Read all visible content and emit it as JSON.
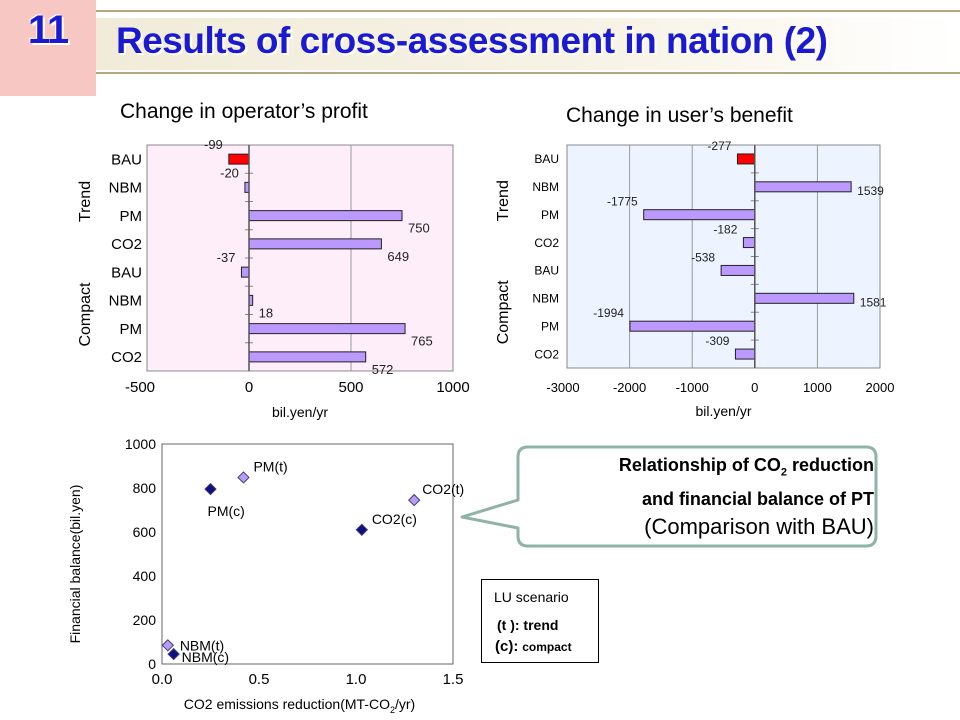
{
  "header": {
    "number": "11",
    "title": "Results of cross-assessment in nation (2)"
  },
  "colors": {
    "title_blue": "#1a1ad0",
    "bar_red": "#ff0000",
    "bar_purple": "#bb99ff",
    "panel_pink": "#fdeefa",
    "panel_blue": "#eef4ff",
    "marker_dark": "#10107a",
    "marker_light": "#b79ef0",
    "callout_border": "#8fb3a6"
  },
  "callout": {
    "line1_pre": "Relationship of CO",
    "line1_sub": "2",
    "line1_post": " reduction",
    "line2": "and financial balance of PT",
    "line3": "(Comparison with BAU)"
  },
  "legend": {
    "title": "LU scenario",
    "trend": "(t ): trend",
    "compact_paren": "(c):",
    "compact_word": "compact"
  },
  "chart_data": [
    {
      "type": "bar",
      "orientation": "horizontal",
      "title": "Change in operator’s profit",
      "xlabel": "bil.yen/yr",
      "xlim": [
        -500,
        1000
      ],
      "xticks": [
        "-500",
        "0",
        "500",
        "1000"
      ],
      "groups": [
        "Trend",
        "Compact"
      ],
      "categories": [
        "BAU",
        "NBM",
        "PM",
        "CO2",
        "BAU",
        "NBM",
        "PM",
        "CO2"
      ],
      "values": [
        -99,
        -20,
        750,
        649,
        -37,
        18,
        765,
        572
      ],
      "labels": [
        "-99",
        "-20",
        "750",
        "649",
        "-37",
        "18",
        "765",
        "572"
      ],
      "highlight_index": 0
    },
    {
      "type": "bar",
      "orientation": "horizontal",
      "title": "Change in user’s benefit",
      "xlabel": "bil.yen/yr",
      "xlim": [
        -3000,
        2000
      ],
      "xticks": [
        "-3000",
        "-2000",
        "-1000",
        "0",
        "1000",
        "2000"
      ],
      "groups": [
        "Trend",
        "Compact"
      ],
      "categories": [
        "BAU",
        "NBM",
        "PM",
        "CO2",
        "BAU",
        "NBM",
        "PM",
        "CO2"
      ],
      "values": [
        -277,
        1539,
        -1775,
        -182,
        -538,
        1581,
        -1994,
        -309
      ],
      "labels": [
        "-277",
        "1539",
        "-1775",
        "-182",
        "-538",
        "1581",
        "-1994",
        "-309"
      ],
      "highlight_index": 0
    },
    {
      "type": "scatter",
      "xlabel_pre": "CO2 emissions reduction(MT-CO",
      "xlabel_sub": "2",
      "xlabel_post": "/yr)",
      "ylabel": "Financial balance(bil.yen)",
      "xlim": [
        0,
        1.5
      ],
      "ylim": [
        0,
        1000
      ],
      "xticks": [
        "0.0",
        "0.5",
        "1.0",
        "1.5"
      ],
      "yticks": [
        "0",
        "200",
        "400",
        "600",
        "800",
        "1000"
      ],
      "points": [
        {
          "label": "PM(t)",
          "x": 0.42,
          "y": 848,
          "style": "light"
        },
        {
          "label": "PM(c)",
          "x": 0.25,
          "y": 795,
          "style": "dark"
        },
        {
          "label": "CO2(t)",
          "x": 1.3,
          "y": 745,
          "style": "light"
        },
        {
          "label": "CO2(c)",
          "x": 1.03,
          "y": 610,
          "style": "dark"
        },
        {
          "label": "NBM(t)",
          "x": 0.03,
          "y": 85,
          "style": "light"
        },
        {
          "label": "NBM(c)",
          "x": 0.06,
          "y": 45,
          "style": "dark"
        }
      ]
    }
  ]
}
